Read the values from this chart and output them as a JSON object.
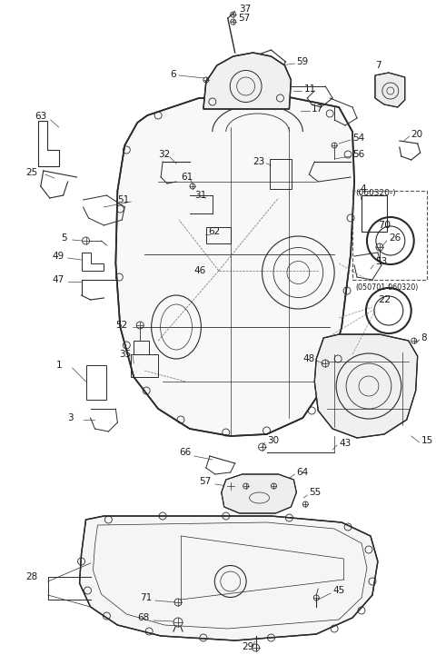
{
  "bg_color": "#ffffff",
  "figsize": [
    4.8,
    7.21
  ],
  "dpi": 100,
  "lc": "#2a2a2a",
  "tc": "#1a1a1a",
  "fs": 7.5
}
